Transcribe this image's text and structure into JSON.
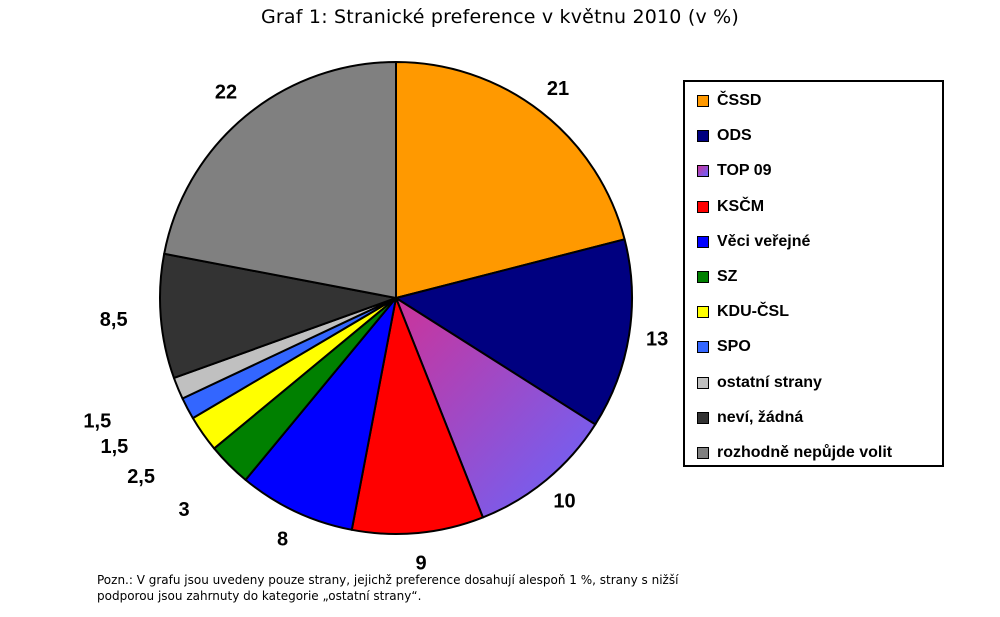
{
  "chart_data": {
    "type": "pie",
    "title": "Graf 1: Stranické preference v květnu 2010 (v %)",
    "unit": "%",
    "legend_position": "right",
    "slices": [
      {
        "label": "ČSSD",
        "value": 21,
        "value_label": "21",
        "color": "#FF9900"
      },
      {
        "label": "ODS",
        "value": 13,
        "value_label": "13",
        "color": "#000080"
      },
      {
        "label": "TOP 09",
        "value": 10,
        "value_label": "10",
        "color": "#CC3399",
        "gradient_to": "#6666FF"
      },
      {
        "label": "KSČM",
        "value": 9,
        "value_label": "9",
        "color": "#FF0000"
      },
      {
        "label": "Věci veřejné",
        "value": 8,
        "value_label": "8",
        "color": "#0000FF"
      },
      {
        "label": "SZ",
        "value": 3,
        "value_label": "3",
        "color": "#008000"
      },
      {
        "label": "KDU-ČSL",
        "value": 2.5,
        "value_label": "2,5",
        "color": "#FFFF00"
      },
      {
        "label": "SPO",
        "value": 1.5,
        "value_label": "1,5",
        "color": "#3366FF"
      },
      {
        "label": "ostatní strany",
        "value": 1.5,
        "value_label": "1,5",
        "color": "#C0C0C0"
      },
      {
        "label": "neví, žádná",
        "value": 8.5,
        "value_label": "8,5",
        "color": "#333333"
      },
      {
        "label": "rozhodně nepůjde volit",
        "value": 22,
        "value_label": "22",
        "color": "#808080"
      }
    ]
  },
  "footnote": {
    "line1": "Pozn.: V grafu jsou uvedeny pouze strany, jejichž preference dosahují alespoň 1 %, strany s nižší",
    "line2": "podporou jsou zahrnuty do kategorie „ostatní strany“."
  }
}
